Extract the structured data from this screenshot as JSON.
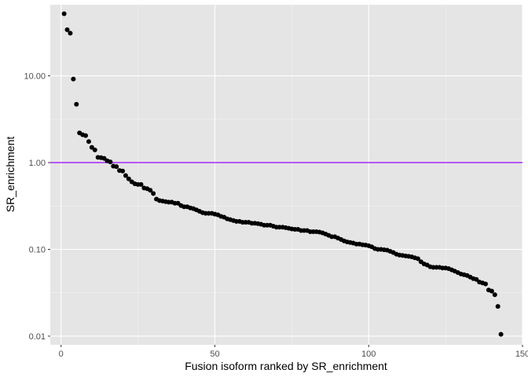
{
  "chart_data": {
    "type": "scatter",
    "xlabel": "Fusion isoform ranked by SR_enrichment",
    "ylabel": "SR_enrichment",
    "xlim": [
      -3.5,
      150
    ],
    "ylim_log10": [
      -2.1,
      1.82
    ],
    "y_scale": "log10",
    "x_ticks": [
      0,
      50,
      100,
      150
    ],
    "x_tick_labels": [
      "0",
      "50",
      "100",
      "150"
    ],
    "y_ticks": [
      0.01,
      0.1,
      1,
      10
    ],
    "y_tick_labels": [
      "0.01",
      "0.10",
      "1.00",
      "10.00"
    ],
    "grid": true,
    "reference_line": {
      "y": 1.0,
      "color": "#9a00ff"
    },
    "colors": {
      "panel": "#e5e5e5",
      "grid_major": "#ffffff",
      "grid_minor": "#f2f2f2",
      "point": "#000000"
    },
    "series": [
      {
        "x": [
          1,
          2,
          3,
          4,
          5,
          6,
          7,
          8,
          9,
          10,
          11,
          12,
          13,
          14,
          15,
          16,
          17,
          18,
          19,
          20,
          21,
          22,
          23,
          24,
          25,
          26,
          27,
          28,
          29,
          30,
          31,
          32,
          33,
          34,
          35,
          36,
          37,
          38,
          39,
          40,
          41,
          42,
          43,
          44,
          45,
          46,
          47,
          48,
          49,
          50,
          51,
          52,
          53,
          54,
          55,
          56,
          57,
          58,
          59,
          60,
          61,
          62,
          63,
          64,
          65,
          66,
          67,
          68,
          69,
          70,
          71,
          72,
          73,
          74,
          75,
          76,
          77,
          78,
          79,
          80,
          81,
          82,
          83,
          84,
          85,
          86,
          87,
          88,
          89,
          90,
          91,
          92,
          93,
          94,
          95,
          96,
          97,
          98,
          99,
          100,
          101,
          102,
          103,
          104,
          105,
          106,
          107,
          108,
          109,
          110,
          111,
          112,
          113,
          114,
          115,
          116,
          117,
          118,
          119,
          120,
          121,
          122,
          123,
          124,
          125,
          126,
          127,
          128,
          129,
          130,
          131,
          132,
          133,
          134,
          135,
          136,
          137,
          138,
          139,
          140,
          141,
          142,
          143
        ],
        "y": [
          52,
          34,
          31,
          9.2,
          4.7,
          2.2,
          2.1,
          2.05,
          1.75,
          1.5,
          1.4,
          1.15,
          1.14,
          1.12,
          1.05,
          1.02,
          0.91,
          0.9,
          0.81,
          0.8,
          0.71,
          0.65,
          0.6,
          0.57,
          0.56,
          0.56,
          0.51,
          0.5,
          0.48,
          0.44,
          0.38,
          0.365,
          0.36,
          0.355,
          0.35,
          0.35,
          0.34,
          0.34,
          0.32,
          0.31,
          0.31,
          0.3,
          0.295,
          0.285,
          0.275,
          0.265,
          0.26,
          0.26,
          0.26,
          0.255,
          0.25,
          0.24,
          0.235,
          0.225,
          0.22,
          0.215,
          0.21,
          0.21,
          0.205,
          0.205,
          0.205,
          0.2,
          0.2,
          0.198,
          0.195,
          0.19,
          0.19,
          0.19,
          0.185,
          0.18,
          0.18,
          0.18,
          0.178,
          0.175,
          0.172,
          0.17,
          0.17,
          0.165,
          0.165,
          0.165,
          0.16,
          0.16,
          0.16,
          0.158,
          0.155,
          0.15,
          0.145,
          0.14,
          0.14,
          0.135,
          0.13,
          0.125,
          0.122,
          0.12,
          0.118,
          0.115,
          0.115,
          0.113,
          0.112,
          0.11,
          0.107,
          0.102,
          0.1,
          0.1,
          0.099,
          0.098,
          0.095,
          0.092,
          0.088,
          0.086,
          0.085,
          0.084,
          0.083,
          0.082,
          0.08,
          0.078,
          0.072,
          0.068,
          0.066,
          0.063,
          0.062,
          0.062,
          0.062,
          0.061,
          0.061,
          0.06,
          0.058,
          0.056,
          0.054,
          0.052,
          0.051,
          0.05,
          0.048,
          0.046,
          0.045,
          0.042,
          0.041,
          0.04,
          0.034,
          0.033,
          0.03,
          0.022,
          0.0105
        ]
      }
    ]
  }
}
